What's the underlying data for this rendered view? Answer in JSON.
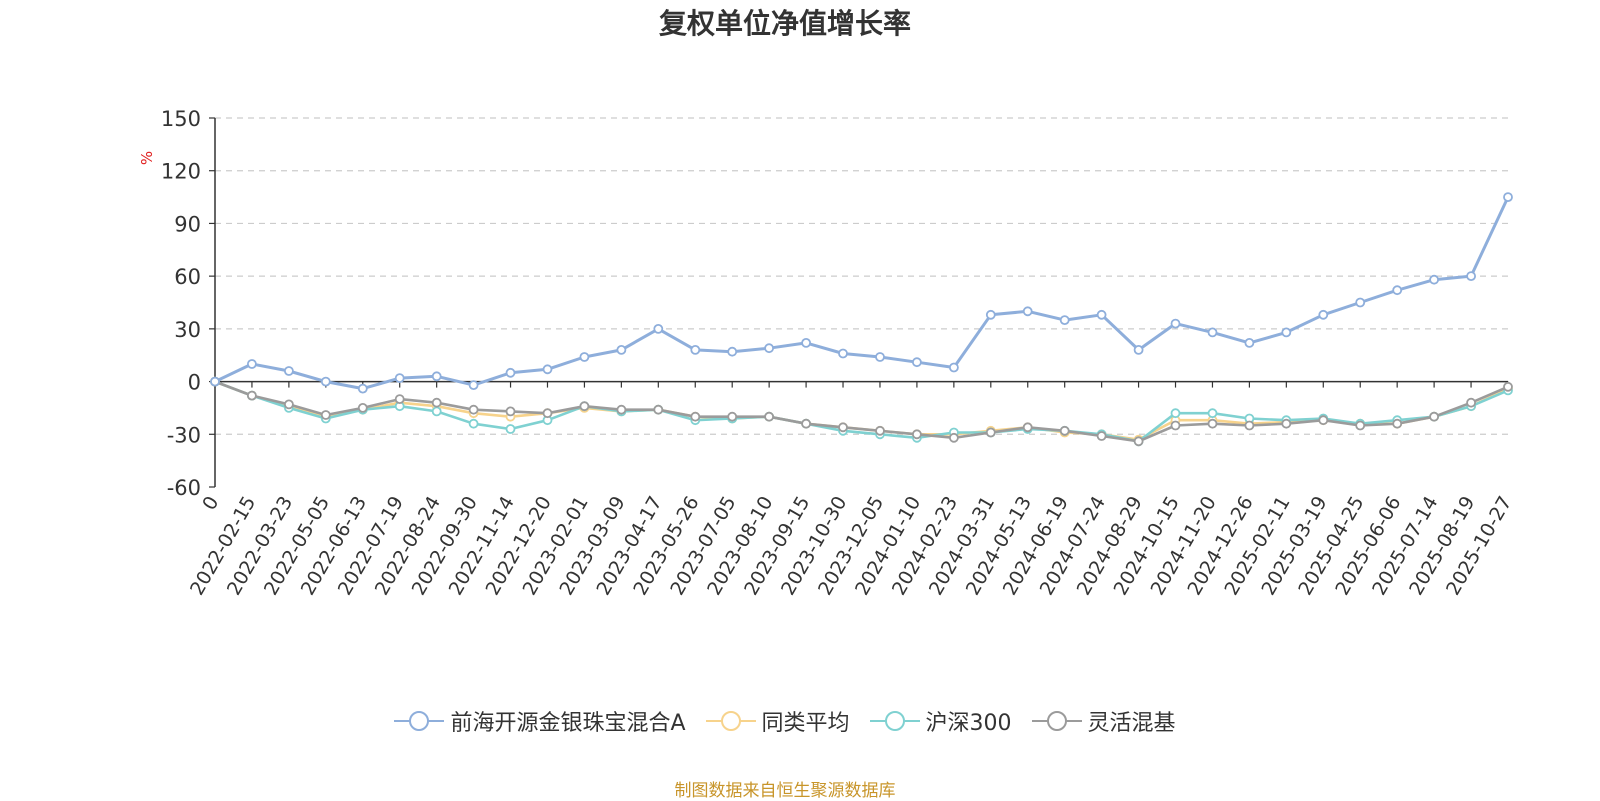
{
  "chart_data": {
    "type": "line",
    "title": "复权单位净值增长率",
    "ylabel": "%",
    "ylim": [
      -60,
      150
    ],
    "yticks": [
      150,
      120,
      90,
      60,
      30,
      0,
      -30,
      -60
    ],
    "grid": true,
    "legend_position": "bottom",
    "x": [
      "0",
      "2022-02-15",
      "2022-03-23",
      "2022-05-05",
      "2022-06-13",
      "2022-07-19",
      "2022-08-24",
      "2022-09-30",
      "2022-11-14",
      "2022-12-20",
      "2023-02-01",
      "2023-03-09",
      "2023-04-17",
      "2023-05-26",
      "2023-07-05",
      "2023-08-10",
      "2023-09-15",
      "2023-10-30",
      "2023-12-05",
      "2024-01-10",
      "2024-02-23",
      "2024-03-31",
      "2024-05-13",
      "2024-06-19",
      "2024-07-24",
      "2024-08-29",
      "2024-10-15",
      "2024-11-20",
      "2024-12-26",
      "2025-02-11",
      "2025-03-19",
      "2025-04-25",
      "2025-06-06",
      "2025-07-14",
      "2025-08-19",
      "2025-10-27"
    ],
    "series": [
      {
        "name": "前海开源金银珠宝混合A",
        "color": "#8eaedb",
        "values": [
          0,
          10,
          6,
          0,
          -4,
          2,
          3,
          -2,
          5,
          7,
          14,
          18,
          30,
          18,
          17,
          19,
          22,
          16,
          14,
          11,
          8,
          38,
          40,
          35,
          38,
          18,
          33,
          28,
          22,
          28,
          38,
          45,
          52,
          58,
          60,
          105
        ]
      },
      {
        "name": "同类平均",
        "color": "#f7d38c",
        "values": [
          0,
          -8,
          -14,
          -20,
          -16,
          -12,
          -14,
          -18,
          -20,
          -18,
          -15,
          -17,
          -16,
          -20,
          -21,
          -20,
          -24,
          -26,
          -28,
          -30,
          -30,
          -28,
          -26,
          -29,
          -30,
          -33,
          -22,
          -22,
          -24,
          -23,
          -22,
          -24,
          -24,
          -20,
          -14,
          -4
        ]
      },
      {
        "name": "沪深300",
        "color": "#7fd1d1",
        "values": [
          0,
          -8,
          -15,
          -21,
          -16,
          -14,
          -17,
          -24,
          -27,
          -22,
          -14,
          -17,
          -16,
          -22,
          -21,
          -20,
          -24,
          -28,
          -30,
          -32,
          -29,
          -29,
          -27,
          -28,
          -30,
          -34,
          -18,
          -18,
          -21,
          -22,
          -21,
          -24,
          -22,
          -20,
          -14,
          -5
        ]
      },
      {
        "name": "灵活混基",
        "color": "#9b9b9b",
        "values": [
          0,
          -8,
          -13,
          -19,
          -15,
          -10,
          -12,
          -16,
          -17,
          -18,
          -14,
          -16,
          -16,
          -20,
          -20,
          -20,
          -24,
          -26,
          -28,
          -30,
          -32,
          -29,
          -26,
          -28,
          -31,
          -34,
          -25,
          -24,
          -25,
          -24,
          -22,
          -25,
          -24,
          -20,
          -12,
          -3
        ]
      }
    ]
  },
  "source_note": "制图数据来自恒生聚源数据库"
}
